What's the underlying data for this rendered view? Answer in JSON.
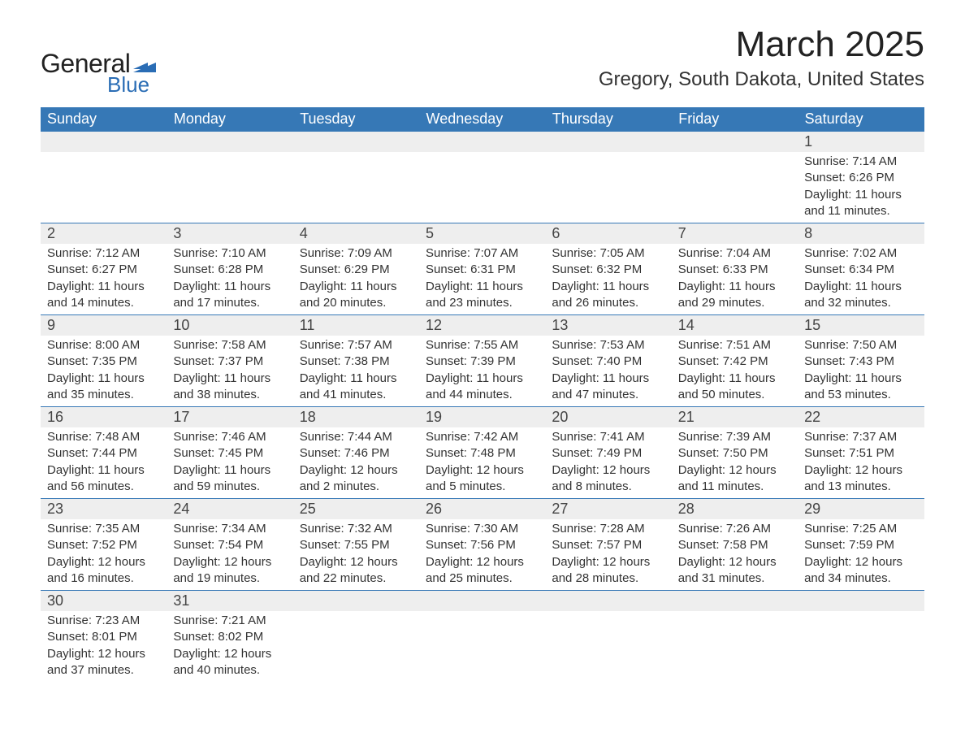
{
  "logo": {
    "text_general": "General",
    "text_blue": "Blue",
    "flag_color": "#2a6db5"
  },
  "header": {
    "month_title": "March 2025",
    "location": "Gregory, South Dakota, United States"
  },
  "colors": {
    "header_bg": "#3678b6",
    "header_text": "#ffffff",
    "daynum_bg": "#eeeeee",
    "border": "#3678b6",
    "body_text": "#333333",
    "page_bg": "#ffffff"
  },
  "typography": {
    "month_title_fontsize": 44,
    "location_fontsize": 24,
    "weekday_fontsize": 18,
    "daynum_fontsize": 18,
    "detail_fontsize": 15,
    "font_family": "Arial"
  },
  "calendar": {
    "type": "table",
    "columns": [
      "Sunday",
      "Monday",
      "Tuesday",
      "Wednesday",
      "Thursday",
      "Friday",
      "Saturday"
    ],
    "weeks": [
      [
        null,
        null,
        null,
        null,
        null,
        null,
        {
          "day": "1",
          "sunrise": "Sunrise: 7:14 AM",
          "sunset": "Sunset: 6:26 PM",
          "daylight1": "Daylight: 11 hours",
          "daylight2": "and 11 minutes."
        }
      ],
      [
        {
          "day": "2",
          "sunrise": "Sunrise: 7:12 AM",
          "sunset": "Sunset: 6:27 PM",
          "daylight1": "Daylight: 11 hours",
          "daylight2": "and 14 minutes."
        },
        {
          "day": "3",
          "sunrise": "Sunrise: 7:10 AM",
          "sunset": "Sunset: 6:28 PM",
          "daylight1": "Daylight: 11 hours",
          "daylight2": "and 17 minutes."
        },
        {
          "day": "4",
          "sunrise": "Sunrise: 7:09 AM",
          "sunset": "Sunset: 6:29 PM",
          "daylight1": "Daylight: 11 hours",
          "daylight2": "and 20 minutes."
        },
        {
          "day": "5",
          "sunrise": "Sunrise: 7:07 AM",
          "sunset": "Sunset: 6:31 PM",
          "daylight1": "Daylight: 11 hours",
          "daylight2": "and 23 minutes."
        },
        {
          "day": "6",
          "sunrise": "Sunrise: 7:05 AM",
          "sunset": "Sunset: 6:32 PM",
          "daylight1": "Daylight: 11 hours",
          "daylight2": "and 26 minutes."
        },
        {
          "day": "7",
          "sunrise": "Sunrise: 7:04 AM",
          "sunset": "Sunset: 6:33 PM",
          "daylight1": "Daylight: 11 hours",
          "daylight2": "and 29 minutes."
        },
        {
          "day": "8",
          "sunrise": "Sunrise: 7:02 AM",
          "sunset": "Sunset: 6:34 PM",
          "daylight1": "Daylight: 11 hours",
          "daylight2": "and 32 minutes."
        }
      ],
      [
        {
          "day": "9",
          "sunrise": "Sunrise: 8:00 AM",
          "sunset": "Sunset: 7:35 PM",
          "daylight1": "Daylight: 11 hours",
          "daylight2": "and 35 minutes."
        },
        {
          "day": "10",
          "sunrise": "Sunrise: 7:58 AM",
          "sunset": "Sunset: 7:37 PM",
          "daylight1": "Daylight: 11 hours",
          "daylight2": "and 38 minutes."
        },
        {
          "day": "11",
          "sunrise": "Sunrise: 7:57 AM",
          "sunset": "Sunset: 7:38 PM",
          "daylight1": "Daylight: 11 hours",
          "daylight2": "and 41 minutes."
        },
        {
          "day": "12",
          "sunrise": "Sunrise: 7:55 AM",
          "sunset": "Sunset: 7:39 PM",
          "daylight1": "Daylight: 11 hours",
          "daylight2": "and 44 minutes."
        },
        {
          "day": "13",
          "sunrise": "Sunrise: 7:53 AM",
          "sunset": "Sunset: 7:40 PM",
          "daylight1": "Daylight: 11 hours",
          "daylight2": "and 47 minutes."
        },
        {
          "day": "14",
          "sunrise": "Sunrise: 7:51 AM",
          "sunset": "Sunset: 7:42 PM",
          "daylight1": "Daylight: 11 hours",
          "daylight2": "and 50 minutes."
        },
        {
          "day": "15",
          "sunrise": "Sunrise: 7:50 AM",
          "sunset": "Sunset: 7:43 PM",
          "daylight1": "Daylight: 11 hours",
          "daylight2": "and 53 minutes."
        }
      ],
      [
        {
          "day": "16",
          "sunrise": "Sunrise: 7:48 AM",
          "sunset": "Sunset: 7:44 PM",
          "daylight1": "Daylight: 11 hours",
          "daylight2": "and 56 minutes."
        },
        {
          "day": "17",
          "sunrise": "Sunrise: 7:46 AM",
          "sunset": "Sunset: 7:45 PM",
          "daylight1": "Daylight: 11 hours",
          "daylight2": "and 59 minutes."
        },
        {
          "day": "18",
          "sunrise": "Sunrise: 7:44 AM",
          "sunset": "Sunset: 7:46 PM",
          "daylight1": "Daylight: 12 hours",
          "daylight2": "and 2 minutes."
        },
        {
          "day": "19",
          "sunrise": "Sunrise: 7:42 AM",
          "sunset": "Sunset: 7:48 PM",
          "daylight1": "Daylight: 12 hours",
          "daylight2": "and 5 minutes."
        },
        {
          "day": "20",
          "sunrise": "Sunrise: 7:41 AM",
          "sunset": "Sunset: 7:49 PM",
          "daylight1": "Daylight: 12 hours",
          "daylight2": "and 8 minutes."
        },
        {
          "day": "21",
          "sunrise": "Sunrise: 7:39 AM",
          "sunset": "Sunset: 7:50 PM",
          "daylight1": "Daylight: 12 hours",
          "daylight2": "and 11 minutes."
        },
        {
          "day": "22",
          "sunrise": "Sunrise: 7:37 AM",
          "sunset": "Sunset: 7:51 PM",
          "daylight1": "Daylight: 12 hours",
          "daylight2": "and 13 minutes."
        }
      ],
      [
        {
          "day": "23",
          "sunrise": "Sunrise: 7:35 AM",
          "sunset": "Sunset: 7:52 PM",
          "daylight1": "Daylight: 12 hours",
          "daylight2": "and 16 minutes."
        },
        {
          "day": "24",
          "sunrise": "Sunrise: 7:34 AM",
          "sunset": "Sunset: 7:54 PM",
          "daylight1": "Daylight: 12 hours",
          "daylight2": "and 19 minutes."
        },
        {
          "day": "25",
          "sunrise": "Sunrise: 7:32 AM",
          "sunset": "Sunset: 7:55 PM",
          "daylight1": "Daylight: 12 hours",
          "daylight2": "and 22 minutes."
        },
        {
          "day": "26",
          "sunrise": "Sunrise: 7:30 AM",
          "sunset": "Sunset: 7:56 PM",
          "daylight1": "Daylight: 12 hours",
          "daylight2": "and 25 minutes."
        },
        {
          "day": "27",
          "sunrise": "Sunrise: 7:28 AM",
          "sunset": "Sunset: 7:57 PM",
          "daylight1": "Daylight: 12 hours",
          "daylight2": "and 28 minutes."
        },
        {
          "day": "28",
          "sunrise": "Sunrise: 7:26 AM",
          "sunset": "Sunset: 7:58 PM",
          "daylight1": "Daylight: 12 hours",
          "daylight2": "and 31 minutes."
        },
        {
          "day": "29",
          "sunrise": "Sunrise: 7:25 AM",
          "sunset": "Sunset: 7:59 PM",
          "daylight1": "Daylight: 12 hours",
          "daylight2": "and 34 minutes."
        }
      ],
      [
        {
          "day": "30",
          "sunrise": "Sunrise: 7:23 AM",
          "sunset": "Sunset: 8:01 PM",
          "daylight1": "Daylight: 12 hours",
          "daylight2": "and 37 minutes."
        },
        {
          "day": "31",
          "sunrise": "Sunrise: 7:21 AM",
          "sunset": "Sunset: 8:02 PM",
          "daylight1": "Daylight: 12 hours",
          "daylight2": "and 40 minutes."
        },
        null,
        null,
        null,
        null,
        null
      ]
    ]
  }
}
